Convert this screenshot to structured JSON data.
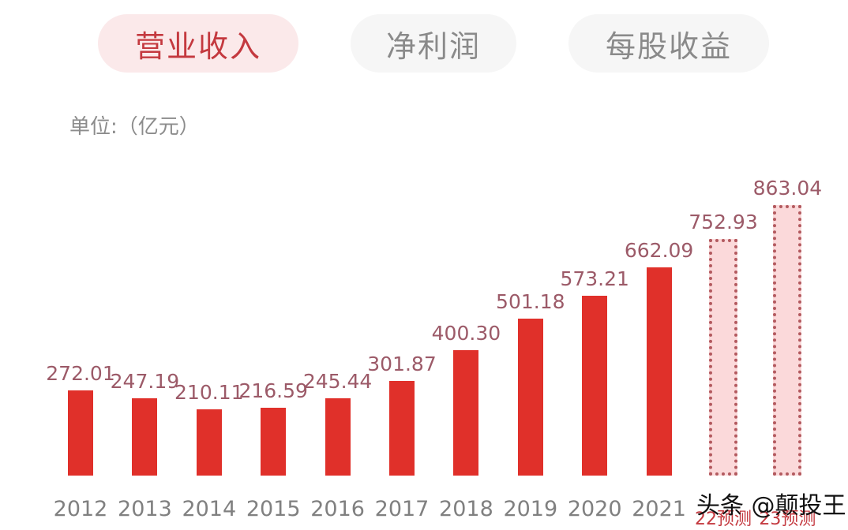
{
  "tabs": [
    {
      "label": "营业收入",
      "active": true
    },
    {
      "label": "净利润",
      "active": false
    },
    {
      "label": "每股收益",
      "active": false
    }
  ],
  "unit_label": "单位:（亿元）",
  "watermark": "头条 @颠投王",
  "colors": {
    "bar": "#e0302a",
    "forecast_fill": "#fbd9da",
    "forecast_border": "#b35a5f",
    "label": "#9c5a68",
    "active_tab": "#c4393f"
  },
  "chart_data": {
    "type": "bar",
    "title": "营业收入",
    "ylabel": "单位:（亿元）",
    "xlabel": "",
    "categories": [
      "2012",
      "2013",
      "2014",
      "2015",
      "2016",
      "2017",
      "2018",
      "2019",
      "2020",
      "2021",
      "22预测",
      "23预测"
    ],
    "values": [
      272.01,
      247.19,
      210.11,
      216.59,
      245.44,
      301.87,
      400.3,
      501.18,
      573.21,
      662.09,
      752.93,
      863.04
    ],
    "value_labels": [
      "272.01",
      "247.19",
      "210.11",
      "216.59",
      "245.44",
      "301.87",
      "400.30",
      "501.18",
      "573.21",
      "662.09",
      "752.93",
      "863.04"
    ],
    "forecast": [
      false,
      false,
      false,
      false,
      false,
      false,
      false,
      false,
      false,
      false,
      true,
      true
    ],
    "ylim": [
      0,
      900
    ],
    "grid": false
  }
}
